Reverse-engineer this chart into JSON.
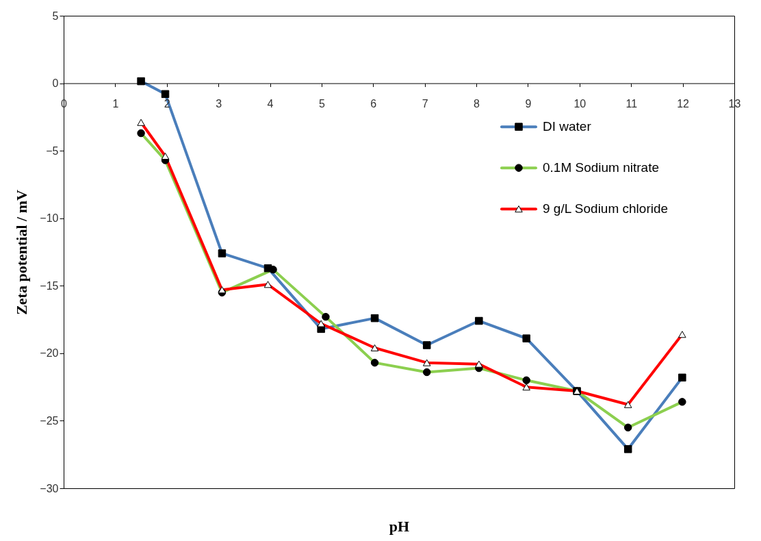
{
  "chart_data": {
    "type": "line",
    "xlabel": "pH",
    "ylabel": "Zeta potential / mV",
    "xlim": [
      0,
      13
    ],
    "xticks": [
      0,
      1,
      2,
      3,
      4,
      5,
      6,
      7,
      8,
      9,
      10,
      11,
      12,
      13
    ],
    "ylim": [
      -30,
      5
    ],
    "yticks": [
      -30,
      -25,
      -20,
      -15,
      -10,
      -5,
      0,
      5
    ],
    "grid": false,
    "legend": "right",
    "line_style": "solid",
    "series": [
      {
        "name": "DI water",
        "color": "#4a7ebb",
        "marker": "square",
        "x": [
          1.5,
          1.97,
          3.07,
          3.96,
          4.99,
          6.03,
          7.04,
          8.05,
          8.97,
          9.95,
          10.94,
          11.99
        ],
        "values": [
          0.15,
          -0.8,
          -12.6,
          -13.7,
          -18.2,
          -17.4,
          -19.4,
          -17.6,
          -18.9,
          -22.8,
          -27.1,
          -21.8
        ]
      },
      {
        "name": "0.1M Sodium nitrate",
        "color": "#8ccf4f",
        "marker": "circle",
        "x": [
          1.5,
          1.97,
          3.07,
          4.06,
          5.08,
          6.03,
          7.04,
          8.05,
          8.97,
          9.95,
          10.94,
          11.99
        ],
        "values": [
          -3.7,
          -5.7,
          -15.5,
          -13.8,
          -17.3,
          -20.7,
          -21.4,
          -21.1,
          -22.0,
          -22.8,
          -25.5,
          -23.6
        ]
      },
      {
        "name": "9 g/L Sodium chloride",
        "color": "#ff0000",
        "marker": "triangle",
        "x": [
          1.5,
          1.97,
          3.07,
          3.96,
          4.99,
          6.03,
          7.04,
          8.05,
          8.97,
          9.95,
          10.94,
          11.99
        ],
        "values": [
          -2.9,
          -5.4,
          -15.3,
          -14.9,
          -17.8,
          -19.6,
          -20.7,
          -20.8,
          -22.5,
          -22.8,
          -23.8,
          -18.6
        ]
      }
    ]
  }
}
